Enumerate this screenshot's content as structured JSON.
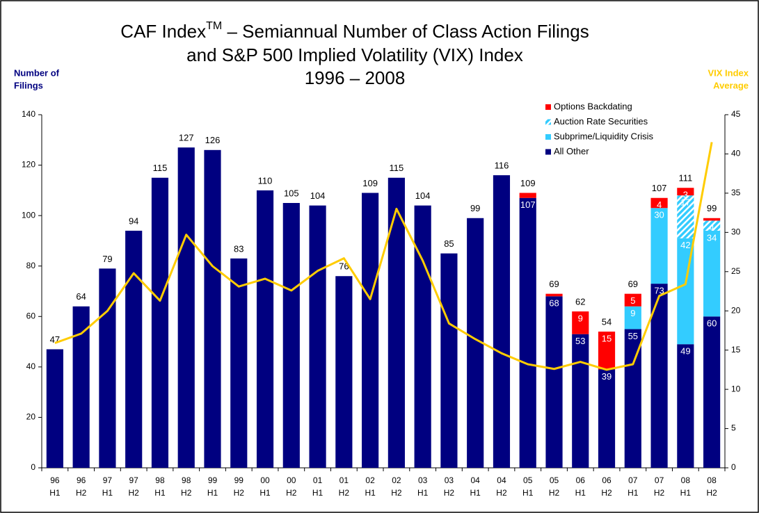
{
  "chart_data": {
    "type": "bar",
    "title": {
      "main": "CAF Index",
      "superscript": "TM",
      "rest": " – Semiannual Number of Class Action Filings",
      "lines": [
        "and S&P 500 Implied Volatility (VIX) Index",
        "1996 – 2008"
      ]
    },
    "ylabel": [
      "Number of",
      "Filings"
    ],
    "y2label": [
      "VIX Index",
      "Average"
    ],
    "categories": [
      [
        "96",
        "H1"
      ],
      [
        "96",
        "H2"
      ],
      [
        "97",
        "H1"
      ],
      [
        "97",
        "H2"
      ],
      [
        "98",
        "H1"
      ],
      [
        "98",
        "H2"
      ],
      [
        "99",
        "H1"
      ],
      [
        "99",
        "H2"
      ],
      [
        "00",
        "H1"
      ],
      [
        "00",
        "H2"
      ],
      [
        "01",
        "H1"
      ],
      [
        "01",
        "H2"
      ],
      [
        "02",
        "H1"
      ],
      [
        "02",
        "H2"
      ],
      [
        "03",
        "H1"
      ],
      [
        "03",
        "H2"
      ],
      [
        "04",
        "H1"
      ],
      [
        "04",
        "H2"
      ],
      [
        "05",
        "H1"
      ],
      [
        "05",
        "H2"
      ],
      [
        "06",
        "H1"
      ],
      [
        "06",
        "H2"
      ],
      [
        "07",
        "H1"
      ],
      [
        "07",
        "H2"
      ],
      [
        "08",
        "H1"
      ],
      [
        "08",
        "H2"
      ]
    ],
    "series": [
      {
        "name": "All Other",
        "color": "#000080",
        "values": [
          47,
          64,
          79,
          94,
          115,
          127,
          126,
          83,
          110,
          105,
          104,
          76,
          109,
          115,
          104,
          85,
          99,
          116,
          107,
          68,
          53,
          39,
          55,
          73,
          49,
          60
        ]
      },
      {
        "name": "Subprime/Liquidity Crisis",
        "color": "#33ccff",
        "values": [
          null,
          null,
          null,
          null,
          null,
          null,
          null,
          null,
          null,
          null,
          null,
          null,
          null,
          null,
          null,
          null,
          null,
          null,
          null,
          null,
          null,
          null,
          9,
          30,
          42,
          34
        ]
      },
      {
        "name": "Auction Rate Securities",
        "color": "#33ccff",
        "hatch": true,
        "values": [
          null,
          null,
          null,
          null,
          null,
          null,
          null,
          null,
          null,
          null,
          null,
          null,
          null,
          null,
          null,
          null,
          null,
          null,
          null,
          null,
          null,
          null,
          null,
          null,
          17,
          4
        ]
      },
      {
        "name": "Options Backdating",
        "color": "#ff0000",
        "values": [
          null,
          null,
          null,
          null,
          null,
          null,
          null,
          null,
          null,
          null,
          null,
          null,
          null,
          null,
          null,
          null,
          null,
          null,
          2,
          1,
          9,
          15,
          5,
          4,
          3,
          1
        ]
      },
      {
        "name": "VIX",
        "type": "line",
        "axis": "y2",
        "color": "#ffcc00",
        "values": [
          15.9,
          17.1,
          20.0,
          24.8,
          21.3,
          29.7,
          25.7,
          23.1,
          24.1,
          22.6,
          25.1,
          26.7,
          21.5,
          33.0,
          26.4,
          18.4,
          16.4,
          14.6,
          13.2,
          12.6,
          13.5,
          12.5,
          13.2,
          21.9,
          23.4,
          41.5
        ]
      }
    ],
    "totals": [
      47,
      64,
      79,
      94,
      115,
      127,
      126,
      83,
      110,
      105,
      104,
      76,
      109,
      115,
      104,
      85,
      99,
      116,
      109,
      69,
      62,
      54,
      69,
      107,
      111,
      99
    ],
    "legend_order": [
      3,
      2,
      1,
      0
    ],
    "ylim": [
      0,
      140
    ],
    "yticks": [
      0,
      20,
      40,
      60,
      80,
      100,
      120,
      140
    ],
    "y2lim": [
      0,
      45
    ],
    "y2ticks": [
      0,
      5,
      10,
      15,
      20,
      25,
      30,
      35,
      40,
      45
    ]
  }
}
